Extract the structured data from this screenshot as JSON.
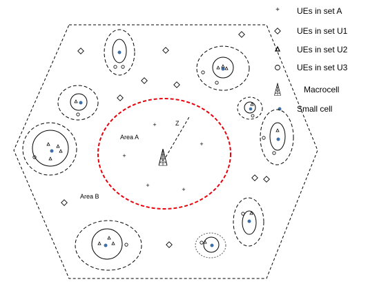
{
  "legend": {
    "ue_set_a": "UEs in set A",
    "ue_set_u1": "UEs in set U1",
    "ue_set_u2": "UEs in set U2",
    "ue_set_u3": "UEs in set U3",
    "macrocell": "Macrocell",
    "small_cell": "Small cell"
  },
  "labels": {
    "area_a": "Area A",
    "area_b": "Area B",
    "distance": "Z"
  },
  "colors": {
    "area_a_boundary": "#e8000b",
    "small_cell": "#3f6fa6",
    "lines": "#000000"
  },
  "icons": [
    "plus-icon",
    "diamond-icon",
    "triangle-icon",
    "circle-icon",
    "tower-icon",
    "dot-icon"
  ]
}
